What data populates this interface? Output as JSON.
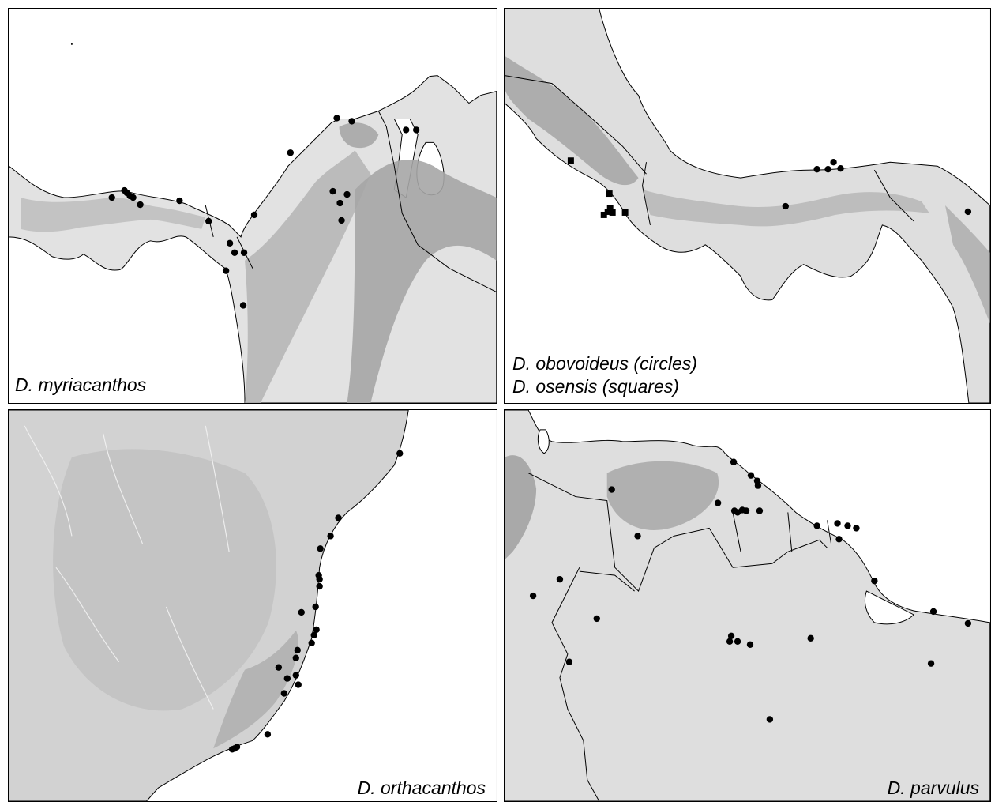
{
  "figure": {
    "panels": [
      {
        "id": "p1",
        "species_label": "D. myriacanthos"
      },
      {
        "id": "p2",
        "species_labels": [
          "D. obovoideus (circles)",
          "D. osensis (squares)"
        ]
      },
      {
        "id": "p3",
        "species_label": "D. orthacanthos"
      },
      {
        "id": "p4",
        "species_label": "D. parvulus"
      }
    ]
  },
  "colors": {
    "sea": "#ffffff",
    "land_low": "#e4e4e4",
    "land_high": "#9a9a9a",
    "border": "#000000",
    "marker": "#000000"
  }
}
